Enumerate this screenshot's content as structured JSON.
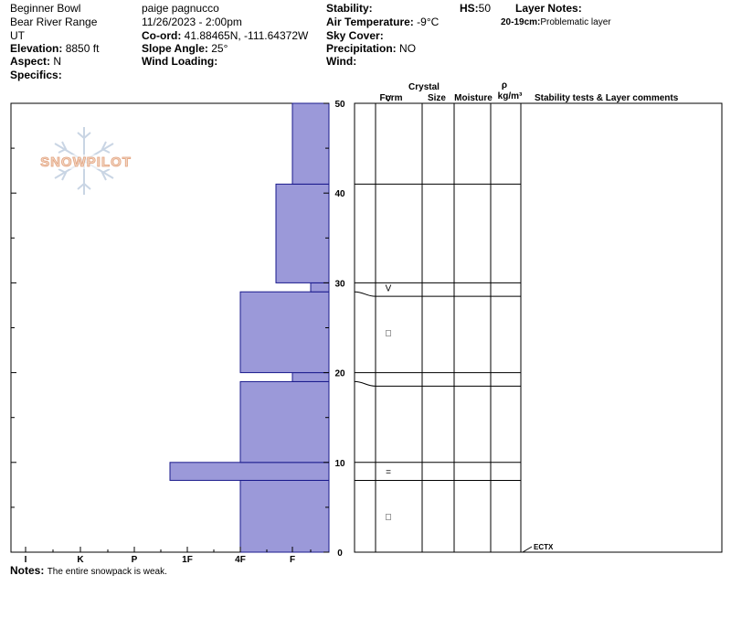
{
  "header": {
    "location": "Beginner Bowl",
    "range": "Bear River Range",
    "state": "UT",
    "elevation_label": "Elevation:",
    "elevation": "8850 ft",
    "aspect_label": "Aspect:",
    "aspect": "N",
    "specifics_label": "Specifics:",
    "observer": "paige pagnucco",
    "datetime": "11/26/2023 - 2:00pm",
    "coord_label": "Co-ord:",
    "coord": "41.88465N, -111.64372W",
    "slope_label": "Slope Angle:",
    "slope": "25°",
    "wind_loading_label": "Wind Loading:",
    "stability_label": "Stability:",
    "air_temp_label": "Air Temperature:",
    "air_temp": "-9°C",
    "sky_label": "Sky Cover:",
    "precip_label": "Precipitation:",
    "precip": "NO",
    "wind_label": "Wind:",
    "hs_label": "HS:",
    "hs": "50",
    "layer_notes_label": "Layer Notes:",
    "layer_note_range": "20-19cm:",
    "layer_note_text": "Problematic layer"
  },
  "columns": {
    "crystal": "Crystal",
    "form": "Form",
    "size": "Size",
    "moisture": "Moisture",
    "rho": "ρ",
    "density_unit": "kg/m³",
    "stability": "Stability tests & Layer comments"
  },
  "logo_text": "SNOWPILOT",
  "notes": {
    "label": "Notes:",
    "text": "The entire snowpack is weak."
  },
  "chart_data": {
    "type": "bar",
    "orientation": "horizontal",
    "y_ticks": [
      "0",
      "10",
      "20",
      "30",
      "40",
      "50"
    ],
    "ylim": [
      0,
      50
    ],
    "x_categories": [
      "I",
      "K",
      "P",
      "1F",
      "4F",
      "F"
    ],
    "hardness_layers": [
      {
        "bottom": 0,
        "top": 8,
        "hardness": "4F"
      },
      {
        "bottom": 8,
        "top": 10,
        "hardness": "P-"
      },
      {
        "bottom": 10,
        "top": 19,
        "hardness": "4F"
      },
      {
        "bottom": 19,
        "top": 20,
        "hardness": "F"
      },
      {
        "bottom": 20,
        "top": 29,
        "hardness": "4F"
      },
      {
        "bottom": 29,
        "top": 30,
        "hardness": "F+"
      },
      {
        "bottom": 30,
        "top": 41,
        "hardness": "4F-"
      },
      {
        "bottom": 41,
        "top": 50,
        "hardness": "F"
      }
    ],
    "boundaries": [
      8,
      10,
      18.5,
      20,
      28.5,
      30,
      41,
      50
    ],
    "grain_symbols": [
      {
        "height": 4,
        "symbol": "□"
      },
      {
        "height": 9,
        "symbol": "="
      },
      {
        "height": 24.5,
        "symbol": "□"
      },
      {
        "height": 29.5,
        "symbol": "V"
      },
      {
        "height": 50,
        "symbol": "V"
      }
    ],
    "tests": [
      {
        "height": 0,
        "label": "ECTX"
      }
    ],
    "bar_color": "#9b99d9",
    "bar_stroke": "#1a1a8c"
  }
}
